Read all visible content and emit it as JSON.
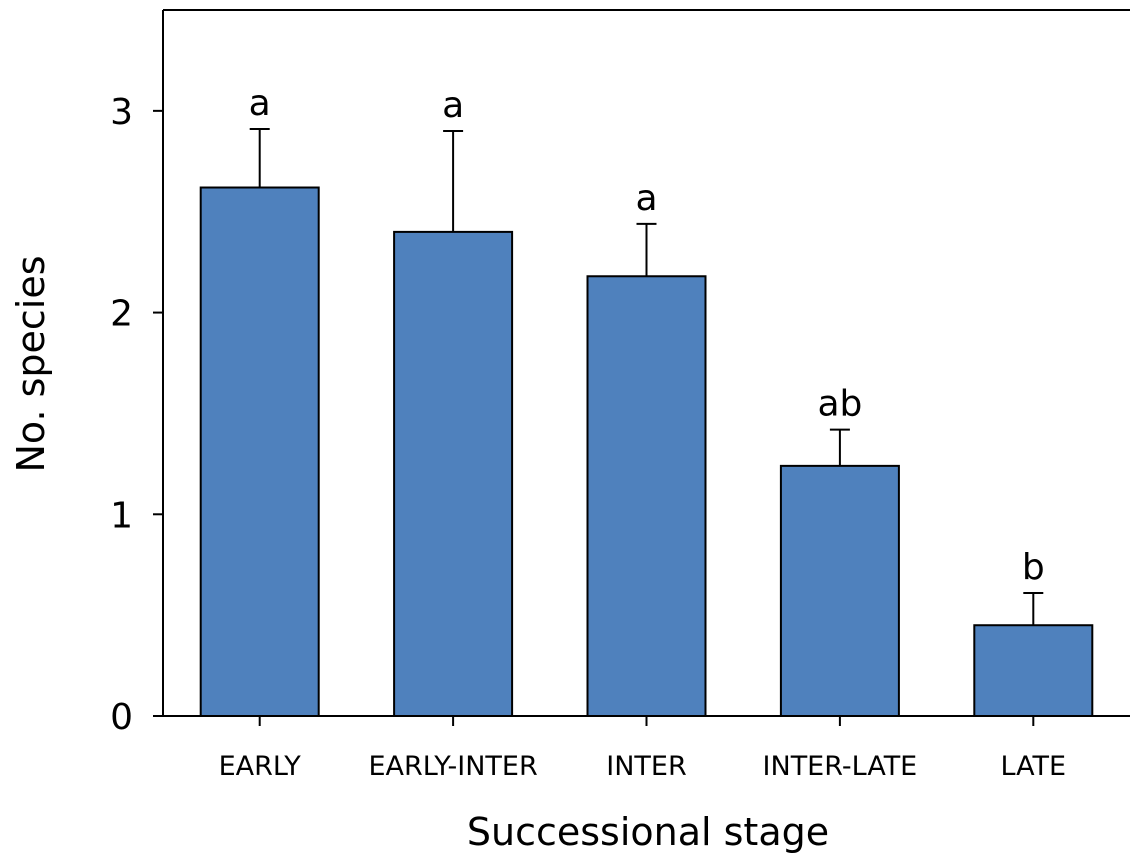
{
  "chart_data": {
    "type": "bar",
    "title": "",
    "xlabel": "Successional stage",
    "ylabel": "No. species",
    "categories": [
      "EARLY",
      "EARLY-INTER",
      "INTER",
      "INTER-LATE",
      "LATE"
    ],
    "values": [
      2.62,
      2.4,
      2.18,
      1.24,
      0.45
    ],
    "error_upper": [
      2.91,
      2.9,
      2.44,
      1.42,
      0.61
    ],
    "significance_letters": [
      "a",
      "a",
      "a",
      "ab",
      "b"
    ],
    "ylim": [
      0,
      3.5
    ],
    "yticks": [
      0,
      1,
      2,
      3
    ],
    "grid": false,
    "bar_color": "#4f81bd",
    "edge_color": "#000000"
  }
}
